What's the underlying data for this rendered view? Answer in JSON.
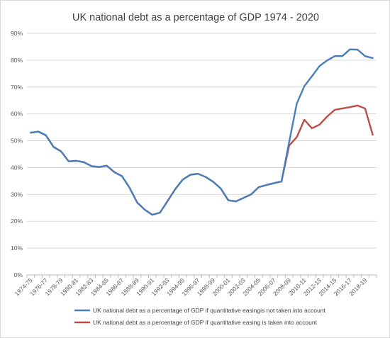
{
  "chart_data": {
    "type": "line",
    "title": "UK national debt as a percentage of GDP 1974 - 2020",
    "xlabel": "",
    "ylabel": "",
    "ylim": [
      0,
      90
    ],
    "yticks": [
      "0%",
      "10%",
      "20%",
      "30%",
      "40%",
      "50%",
      "60%",
      "70%",
      "80%",
      "90%"
    ],
    "grid": true,
    "legend_position": "bottom",
    "categories": [
      "1974-75",
      "1975-76",
      "1976-77",
      "1977-78",
      "1978-79",
      "1979-80",
      "1980-81",
      "1981-82",
      "1982-83",
      "1983-84",
      "1984-85",
      "1985-86",
      "1986-87",
      "1987-88",
      "1988-89",
      "1989-90",
      "1990-91",
      "1991-92",
      "1992-93",
      "1993-94",
      "1994-95",
      "1995-96",
      "1996-97",
      "1997-98",
      "1998-99",
      "1999-00",
      "2000-01",
      "2001-02",
      "2002-03",
      "2003-04",
      "2004-05",
      "2005-06",
      "2006-07",
      "2007-08",
      "2008-09",
      "2009-10",
      "2010-11",
      "2011-12",
      "2012-13",
      "2013-14",
      "2014-15",
      "2015-16",
      "2016-17",
      "2017-18",
      "2018-19",
      "2019-20"
    ],
    "category_labels_shown": [
      "1974-75",
      "1976-77",
      "1978-79",
      "1980-81",
      "1982-83",
      "1984-85",
      "1986-87",
      "1988-89",
      "1990-91",
      "1992-93",
      "1994-95",
      "1996-97",
      "1998-99",
      "2000-01",
      "2002-03",
      "2004-05",
      "2006-07",
      "2008-09",
      "2010-11",
      "2012-13",
      "2014-15",
      "2016-17",
      "2018-19"
    ],
    "series": [
      {
        "name": "UK national debt as a percentage of GDP if quantitative easingis not taken into account",
        "color": "#4a7ebb",
        "values": [
          53.0,
          53.4,
          52.0,
          47.7,
          46.0,
          42.3,
          42.5,
          42.0,
          40.5,
          40.2,
          40.7,
          38.3,
          36.8,
          32.5,
          27.0,
          24.3,
          22.4,
          23.2,
          27.5,
          31.9,
          35.5,
          37.3,
          37.7,
          36.5,
          34.7,
          32.2,
          27.8,
          27.4,
          28.7,
          30.0,
          32.7,
          33.5,
          34.2,
          34.8,
          49.5,
          63.8,
          70.3,
          74.0,
          77.8,
          79.9,
          81.5,
          81.5,
          84.0,
          83.9,
          81.5,
          80.8
        ]
      },
      {
        "name": "UK national debt as a percentage of GDP if quantitative easing is taken into account",
        "color": "#be4b48",
        "values": [
          53.0,
          53.4,
          52.0,
          47.7,
          46.0,
          42.3,
          42.5,
          42.0,
          40.5,
          40.2,
          40.7,
          38.3,
          36.8,
          32.5,
          27.0,
          24.3,
          22.4,
          23.2,
          27.5,
          31.9,
          35.5,
          37.3,
          37.7,
          36.5,
          34.7,
          32.2,
          27.8,
          27.4,
          28.7,
          30.0,
          32.7,
          33.5,
          34.2,
          34.8,
          48.2,
          51.3,
          57.8,
          54.6,
          56.0,
          59.0,
          61.5,
          62.0,
          62.5,
          63.1,
          62.0,
          52.2
        ]
      }
    ]
  }
}
